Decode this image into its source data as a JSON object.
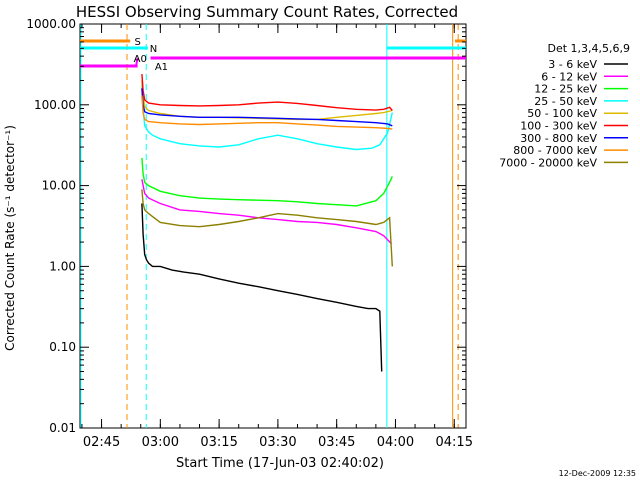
{
  "chart_data": {
    "type": "line",
    "title": "HESSI Observing Summary Count Rates, Corrected",
    "xlabel": "Start Time (17-Jun-03 02:40:02)",
    "ylabel": "Corrected Count Rate (s⁻¹ detector⁻¹)",
    "y_log": true,
    "ylim": [
      0.01,
      1000
    ],
    "xlim_minutes": [
      -0.5,
      98
    ],
    "y_ticks": [
      {
        "value": 1000,
        "label": "1000.00"
      },
      {
        "value": 100,
        "label": "100.00"
      },
      {
        "value": 10,
        "label": "10.00"
      },
      {
        "value": 1,
        "label": "1.00"
      },
      {
        "value": 0.1,
        "label": "0.10"
      },
      {
        "value": 0.01,
        "label": "0.01"
      }
    ],
    "x_ticks": [
      {
        "minutes": 5,
        "label": "02:45"
      },
      {
        "minutes": 20,
        "label": "03:00"
      },
      {
        "minutes": 35,
        "label": "03:15"
      },
      {
        "minutes": 50,
        "label": "03:30"
      },
      {
        "minutes": 65,
        "label": "03:45"
      },
      {
        "minutes": 80,
        "label": "04:00"
      },
      {
        "minutes": 95,
        "label": "04:15"
      }
    ],
    "legend": {
      "title": "Det 1,3,4,5,6,9",
      "placement": "right"
    },
    "series": [
      {
        "name": "3 - 6 keV",
        "color": "#000000",
        "x": [
          15.3,
          15.6,
          16,
          16.5,
          17,
          18,
          20,
          23,
          26,
          30,
          35,
          40,
          45,
          50,
          55,
          60,
          65,
          70,
          73,
          75,
          76,
          76.5
        ],
        "y": [
          6,
          2.5,
          1.4,
          1.2,
          1.1,
          1.0,
          1.0,
          0.9,
          0.85,
          0.8,
          0.7,
          0.62,
          0.56,
          0.5,
          0.45,
          0.4,
          0.36,
          0.32,
          0.3,
          0.3,
          0.28,
          0.05
        ]
      },
      {
        "name": "6 - 12 keV",
        "color": "#ff00ff",
        "x": [
          15.3,
          16,
          17,
          20,
          25,
          30,
          35,
          40,
          45,
          50,
          55,
          60,
          65,
          70,
          75,
          77,
          79
        ],
        "y": [
          12,
          8,
          7,
          6,
          5,
          4.8,
          4.5,
          4.3,
          4.0,
          3.8,
          3.6,
          3.5,
          3.3,
          3.0,
          2.7,
          2.4,
          1.9
        ]
      },
      {
        "name": "12 - 25 keV",
        "color": "#00ff00",
        "x": [
          15.3,
          15.6,
          16,
          17,
          20,
          25,
          30,
          35,
          40,
          45,
          50,
          55,
          60,
          65,
          70,
          75,
          77,
          78.5,
          79.2
        ],
        "y": [
          22,
          14,
          11,
          10,
          8.5,
          7.5,
          7,
          6.8,
          6.7,
          6.6,
          6.5,
          6.3,
          6.0,
          5.8,
          5.6,
          6.5,
          8,
          11,
          13
        ]
      },
      {
        "name": "25 - 50 keV",
        "color": "#00ffff",
        "x": [
          15.3,
          15.6,
          16,
          17,
          18,
          20,
          25,
          30,
          35,
          40,
          45,
          50,
          55,
          60,
          65,
          70,
          74,
          76,
          78,
          79.2
        ],
        "y": [
          180,
          90,
          55,
          46,
          42,
          38,
          33,
          31,
          30,
          32,
          38,
          42,
          38,
          33,
          30,
          28,
          29,
          32,
          45,
          80
        ]
      },
      {
        "name": "50 - 100 keV",
        "color": "#ddbb00",
        "x": [
          15.3,
          15.6,
          16,
          17,
          20,
          25,
          30,
          35,
          40,
          45,
          50,
          55,
          60,
          65,
          70,
          75,
          77,
          79.2
        ],
        "y": [
          200,
          130,
          95,
          85,
          78,
          72,
          70,
          70,
          69,
          68,
          67,
          66,
          66,
          70,
          74,
          78,
          80,
          85
        ]
      },
      {
        "name": "100 - 300 keV",
        "color": "#ff0000",
        "x": [
          15.3,
          15.6,
          16,
          17,
          20,
          25,
          30,
          35,
          40,
          45,
          50,
          55,
          60,
          65,
          70,
          75,
          77,
          78.5,
          79.2
        ],
        "y": [
          240,
          150,
          115,
          105,
          100,
          98,
          97,
          98,
          100,
          105,
          108,
          104,
          98,
          92,
          88,
          86,
          88,
          93,
          85
        ]
      },
      {
        "name": "300 - 800 keV",
        "color": "#0000ff",
        "x": [
          15.3,
          15.6,
          16,
          17,
          20,
          25,
          30,
          35,
          40,
          45,
          50,
          55,
          60,
          65,
          70,
          75,
          78,
          79.2
        ],
        "y": [
          160,
          100,
          82,
          78,
          75,
          72,
          70,
          70,
          70,
          69,
          68,
          67,
          66,
          64,
          62,
          60,
          58,
          55
        ]
      },
      {
        "name": "800 - 7000 keV",
        "color": "#ff8c00",
        "x": [
          15.3,
          15.6,
          16,
          17,
          20,
          25,
          30,
          35,
          40,
          45,
          50,
          55,
          60,
          65,
          70,
          75,
          78,
          79.2
        ],
        "y": [
          130,
          80,
          66,
          62,
          60,
          58,
          57,
          58,
          59,
          60,
          60,
          58,
          56,
          54,
          53,
          52,
          51,
          50
        ]
      },
      {
        "name": "7000 - 20000 keV",
        "color": "#8b8000",
        "x": [
          15.3,
          15.6,
          16,
          17,
          20,
          25,
          30,
          35,
          40,
          45,
          50,
          55,
          60,
          65,
          70,
          75,
          77,
          78.5,
          79.2
        ],
        "y": [
          9,
          6,
          5,
          4.5,
          3.5,
          3.2,
          3.1,
          3.3,
          3.6,
          4.0,
          4.5,
          4.3,
          4.0,
          3.8,
          3.6,
          3.3,
          3.5,
          4.0,
          1.0
        ]
      }
    ],
    "markers": {
      "S": {
        "label": "S",
        "color": "#ff8c00"
      },
      "N": {
        "label": "N",
        "color": "#00ffff"
      },
      "A0": {
        "label": "A0",
        "color": "#ff00ff"
      },
      "A1": {
        "label": "A1",
        "color": "#ff00ff"
      }
    },
    "footer_date": "12-Dec-2009 12:35"
  }
}
